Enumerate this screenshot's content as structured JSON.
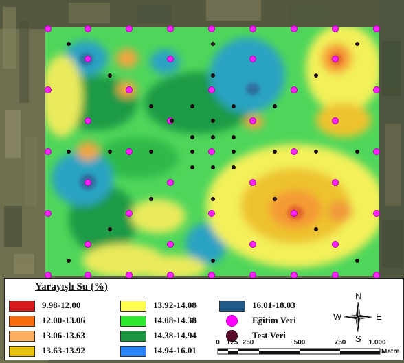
{
  "legend": {
    "title": "Yarayışlı Su (%)",
    "classes": [
      {
        "label": "9.98-12.00",
        "color": "#d7191c"
      },
      {
        "label": "12.00-13.06",
        "color": "#f46d0e"
      },
      {
        "label": "13.06-13.63",
        "color": "#fdae61"
      },
      {
        "label": "13.63-13.92",
        "color": "#e8c30f"
      },
      {
        "label": "13.92-14.08",
        "color": "#ffff4d"
      },
      {
        "label": "14.08-14.38",
        "color": "#2ee82e"
      },
      {
        "label": "14.38-14.94",
        "color": "#1a9641"
      },
      {
        "label": "14.94-16.01",
        "color": "#2b83ff"
      },
      {
        "label": "16.01-18.03",
        "color": "#1f5a8a"
      }
    ],
    "points": [
      {
        "label": "Eğitim Veri",
        "color": "#ff00ff"
      },
      {
        "label": "Test Veri",
        "color": "#5a0a2a"
      }
    ]
  },
  "compass": {
    "north": "N",
    "south": "S",
    "east": "E",
    "west": "W"
  },
  "scale": {
    "ticks": [
      "0",
      "125",
      "250",
      "500",
      "750",
      "1.000"
    ],
    "unit": "Metre"
  }
}
